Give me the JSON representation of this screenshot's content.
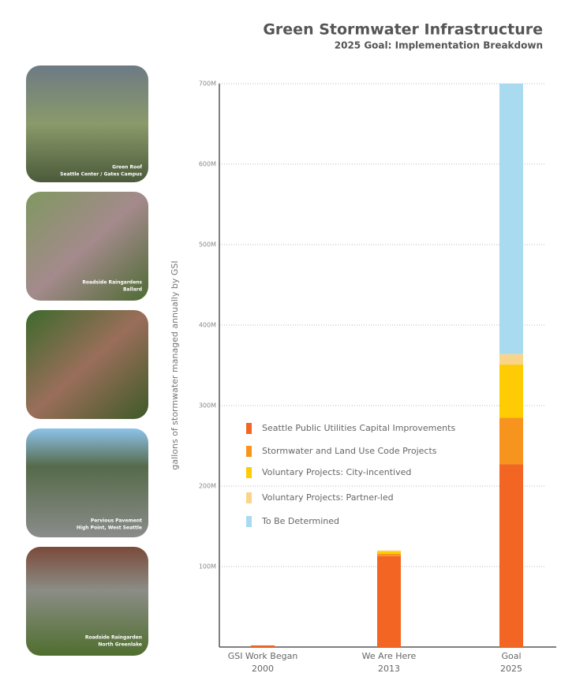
{
  "photos": [
    {
      "caption": [
        "Green Roof",
        "Seattle Center / Gates Campus"
      ]
    },
    {
      "caption": [
        "Roadside Raingardens",
        "Ballard"
      ]
    },
    {
      "caption": [
        "Pervious Pavement",
        "High Point, West Seattle"
      ]
    },
    {
      "caption": [
        "Roadside Raingarden",
        "North Greenlake"
      ]
    }
  ],
  "chart_data": {
    "type": "stacked-bar",
    "title": "Green Stormwater Infrastructure",
    "subtitle": "2025 Goal: Implementation Breakdown",
    "y_label": "gallons of stormwater managed annually by GSI",
    "categories": [
      "GSI Work Began",
      "We Are Here",
      "Goal"
    ],
    "category_sublabels": [
      "2000",
      "2013",
      "2025"
    ],
    "series": [
      {
        "name": "Seattle Public Utilities Capital Improvements",
        "color": "#f26522",
        "values": [
          2,
          113,
          227
        ]
      },
      {
        "name": "Stormwater and Land Use Code Projects",
        "color": "#f7941d",
        "values": [
          0,
          3,
          58
        ]
      },
      {
        "name": "Voluntary Projects: City-incentived",
        "color": "#ffcb05",
        "values": [
          0,
          3,
          66
        ]
      },
      {
        "name": "Voluntary Projects: Partner-led",
        "color": "#f9d58b",
        "values": [
          0,
          1,
          13
        ]
      },
      {
        "name": "To Be Determined",
        "color": "#a8daf0",
        "values": [
          0,
          0,
          336
        ]
      }
    ],
    "ylim": [
      0,
      700
    ],
    "yticks": [
      {
        "value": 100,
        "label": "100M"
      },
      {
        "value": 200,
        "label": "200M"
      },
      {
        "value": 300,
        "label": "300M"
      },
      {
        "value": 400,
        "label": "400M"
      },
      {
        "value": 500,
        "label": "500M"
      },
      {
        "value": 600,
        "label": "600M"
      },
      {
        "value": 700,
        "label": "700M"
      }
    ],
    "grid": true
  }
}
